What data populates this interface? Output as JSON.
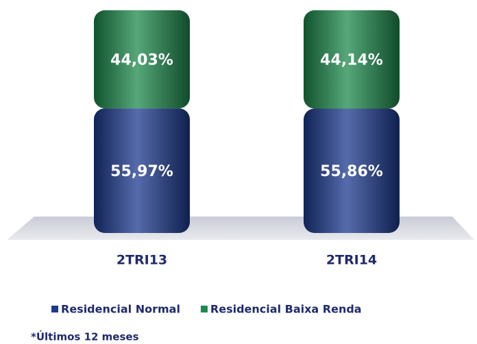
{
  "chart_data": {
    "type": "bar",
    "stacked": true,
    "categories": [
      "2TRI13",
      "2TRI14"
    ],
    "series": [
      {
        "name": "Residencial Normal",
        "color": "#1c3a8f",
        "values": [
          55.97,
          55.86
        ],
        "value_labels": [
          "55,97%",
          "55,86%"
        ]
      },
      {
        "name": "Residencial Baixa Renda",
        "color": "#1d8a4c",
        "values": [
          44.03,
          44.14
        ],
        "value_labels": [
          "44,03%",
          "44,14%"
        ]
      }
    ],
    "ylim": [
      0,
      100
    ],
    "legend": "bottom",
    "footnote": "*Últimos 12 meses"
  }
}
